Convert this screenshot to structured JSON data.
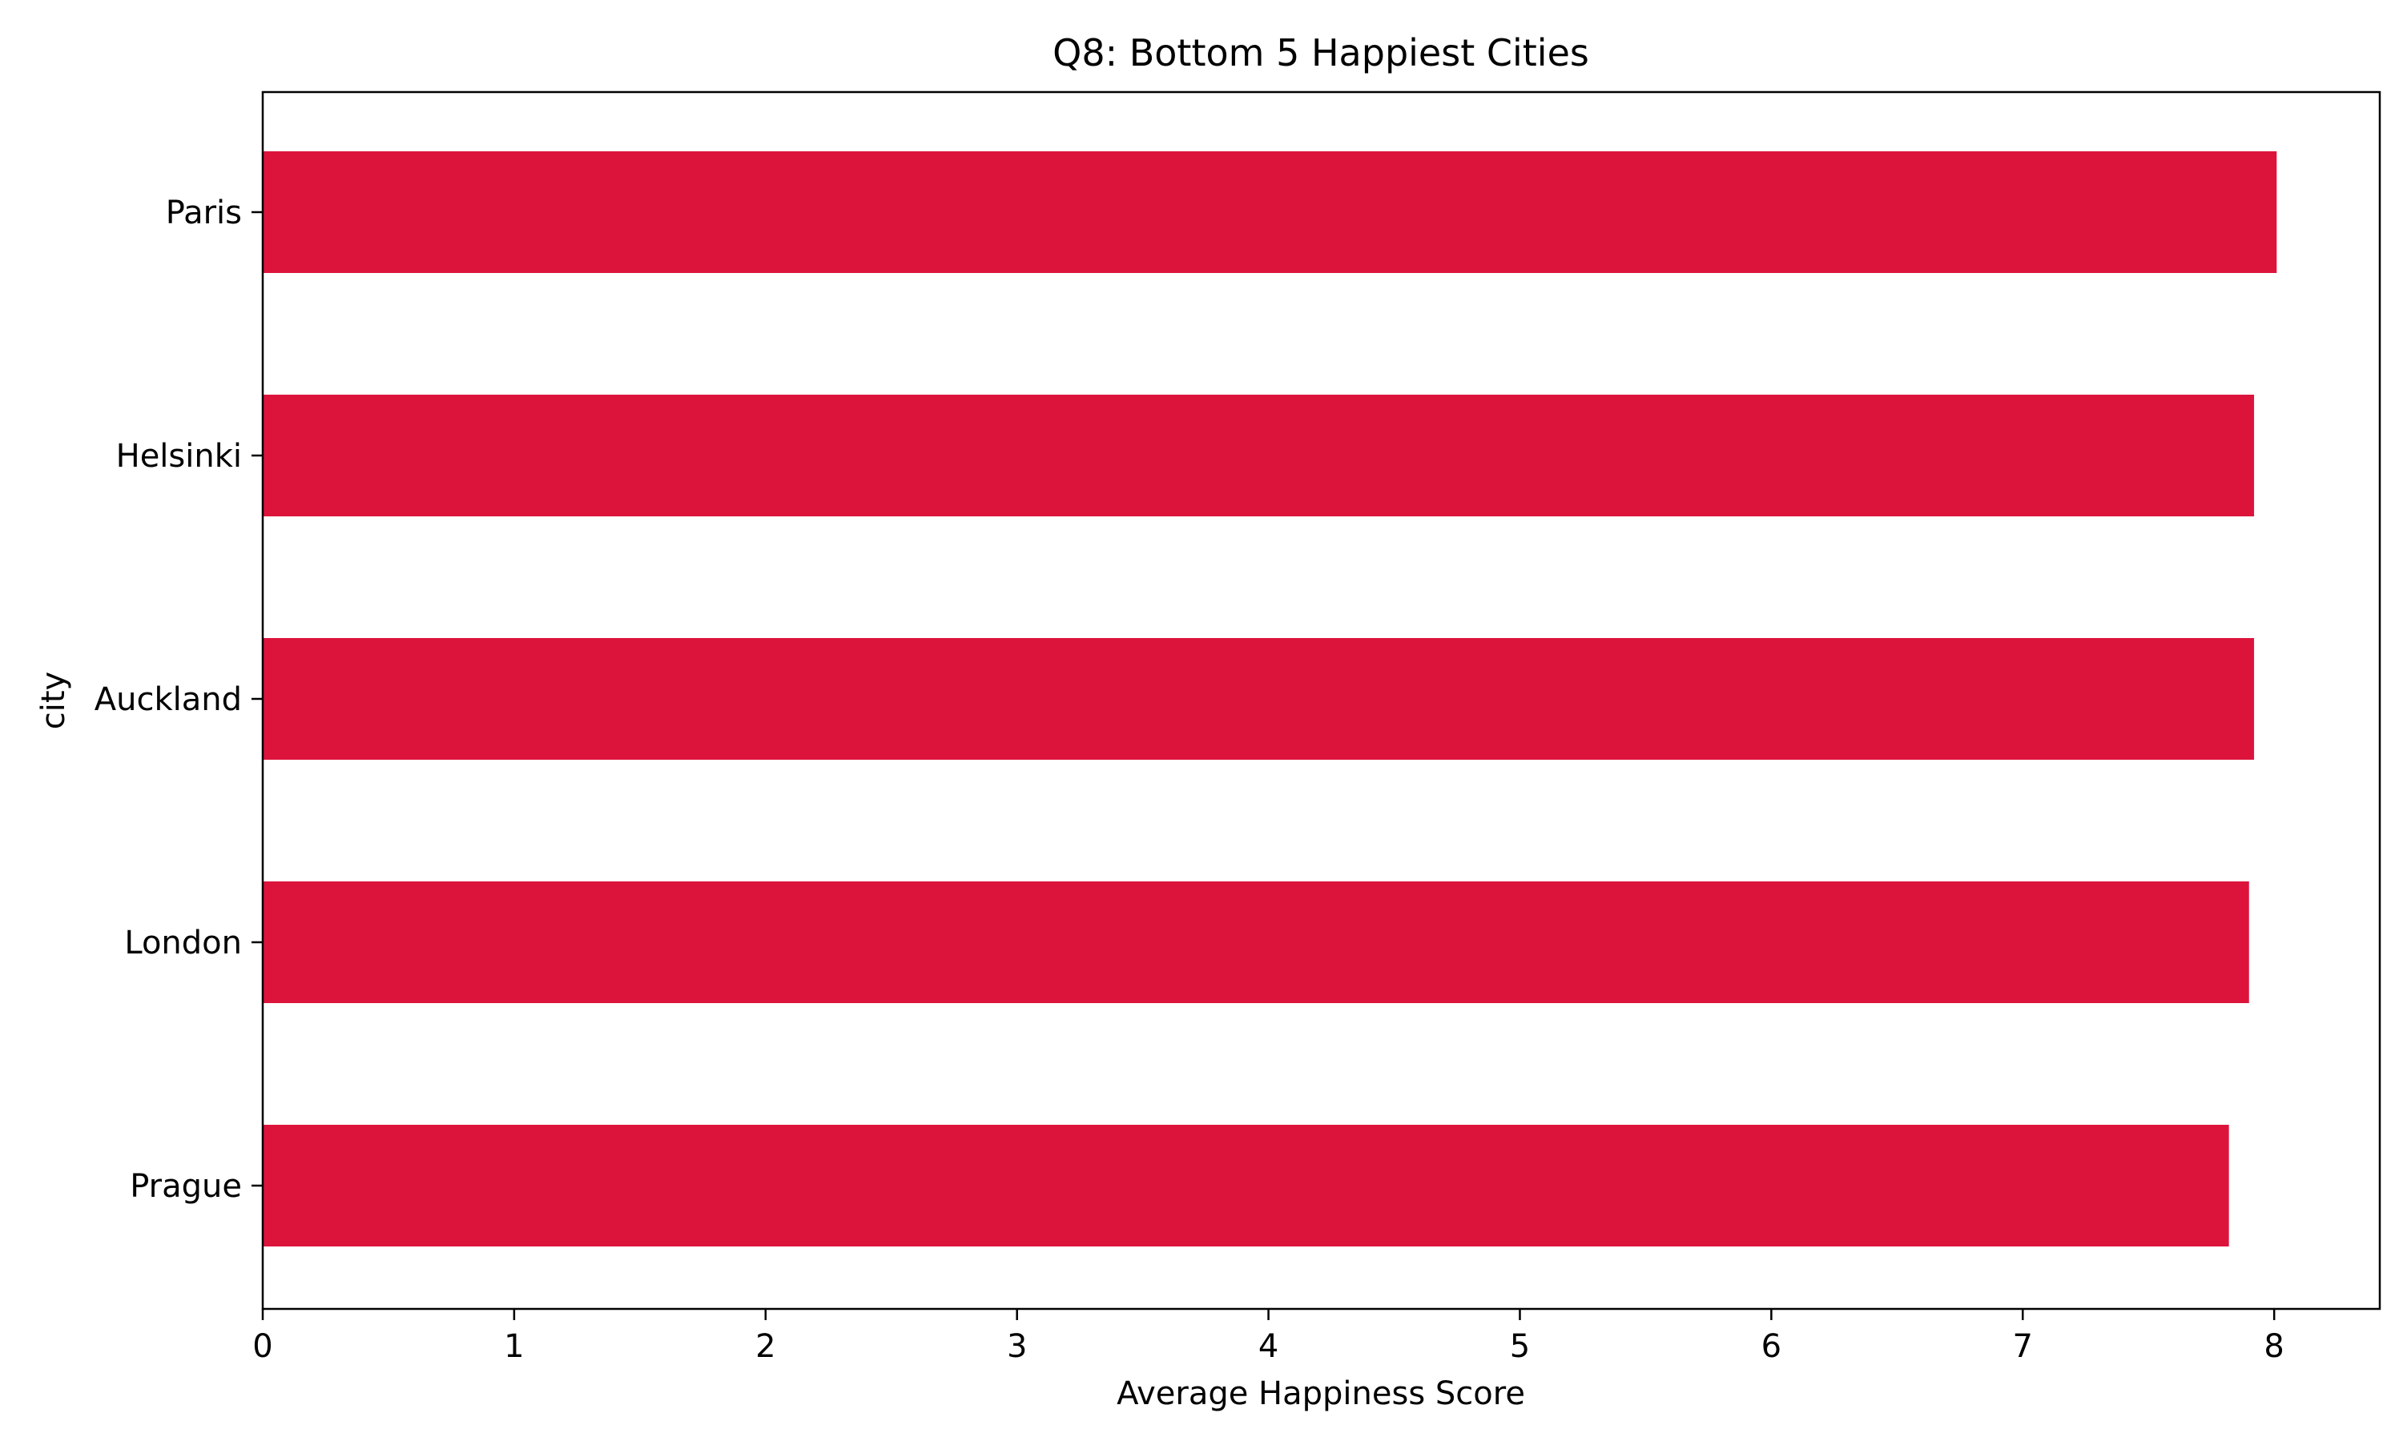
{
  "chart_data": {
    "type": "bar",
    "orientation": "horizontal",
    "title": "Q8: Bottom 5 Happiest Cities",
    "xlabel": "Average Happiness Score",
    "ylabel": "city",
    "categories": [
      "Paris",
      "Helsinki",
      "Auckland",
      "London",
      "Prague"
    ],
    "values": [
      8.01,
      7.92,
      7.92,
      7.9,
      7.82
    ],
    "xlim": [
      0,
      8.42
    ],
    "xticks": [
      0,
      1,
      2,
      3,
      4,
      5,
      6,
      7,
      8
    ],
    "grid": false,
    "bar_color": "#DC143C"
  }
}
